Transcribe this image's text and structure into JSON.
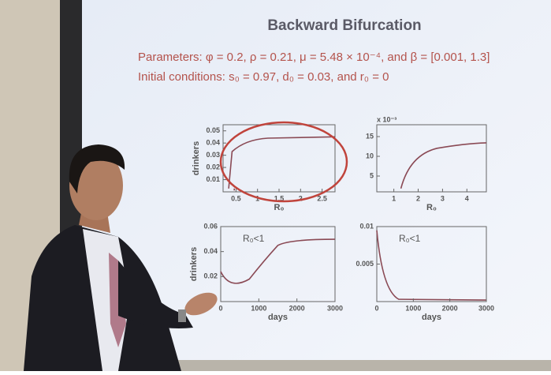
{
  "slide": {
    "title": "Backward Bifurcation",
    "parameters": "Parameters: φ = 0.2, ρ = 0.21, μ = 5.48 × 10⁻⁴, and β = [0.001, 1.3]",
    "initial_conditions": "Initial conditions: s₀ = 0.97, d₀ = 0.03, and r₀ = 0",
    "plots": [
      {
        "ylabel": "drinkers",
        "xlabel": "R₀",
        "xlim": [
          0.2,
          2.8
        ],
        "ylim": [
          0,
          0.055
        ],
        "xticks": [
          0.5,
          1,
          1.5,
          2,
          2.5
        ],
        "yticks": [
          0.01,
          0.02,
          0.03,
          0.04,
          0.05
        ]
      },
      {
        "scale_note": "x 10⁻³",
        "xlabel": "R₀",
        "xlim": [
          0.3,
          4.8
        ],
        "ylim": [
          1,
          18
        ],
        "xticks": [
          1,
          2,
          3,
          4
        ],
        "yticks": [
          5,
          10,
          15
        ]
      },
      {
        "ylabel": "drinkers",
        "xlabel": "days",
        "annotation": "R₀<1",
        "xlim": [
          0,
          3000
        ],
        "ylim": [
          0,
          0.06
        ],
        "xticks": [
          0,
          1000,
          2000,
          3000
        ],
        "yticks": [
          0.02,
          0.04,
          0.06
        ]
      },
      {
        "xlabel": "days",
        "annotation": "R₀<1",
        "xlim": [
          0,
          3000
        ],
        "ylim": [
          0,
          0.01
        ],
        "xticks": [
          0,
          1000,
          2000,
          3000
        ],
        "yticks": [
          0.005,
          0.01
        ]
      }
    ]
  }
}
